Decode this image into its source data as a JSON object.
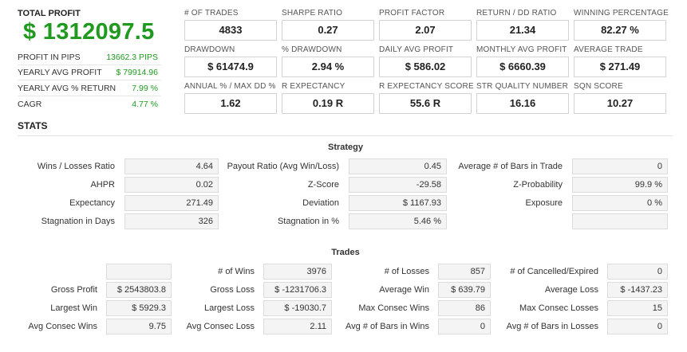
{
  "summary": {
    "total_profit_label": "TOTAL PROFIT",
    "total_profit_value": "$ 1312097.5",
    "rows": [
      {
        "label": "PROFIT IN PIPS",
        "value": "13662.3 PIPS"
      },
      {
        "label": "YEARLY AVG PROFIT",
        "value": "$ 79914.96"
      },
      {
        "label": "YEARLY AVG % RETURN",
        "value": "7.99 %"
      },
      {
        "label": "CAGR",
        "value": "4.77 %"
      }
    ]
  },
  "kpis": [
    {
      "label": "# OF TRADES",
      "value": "4833"
    },
    {
      "label": "SHARPE RATIO",
      "value": "0.27"
    },
    {
      "label": "PROFIT FACTOR",
      "value": "2.07"
    },
    {
      "label": "RETURN / DD RATIO",
      "value": "21.34"
    },
    {
      "label": "WINNING PERCENTAGE",
      "value": "82.27 %"
    },
    {
      "label": "DRAWDOWN",
      "value": "$ 61474.9"
    },
    {
      "label": "% DRAWDOWN",
      "value": "2.94 %"
    },
    {
      "label": "DAILY AVG PROFIT",
      "value": "$ 586.02"
    },
    {
      "label": "MONTHLY AVG PROFIT",
      "value": "$ 6660.39"
    },
    {
      "label": "AVERAGE TRADE",
      "value": "$ 271.49"
    },
    {
      "label": "ANNUAL % / MAX DD %",
      "value": "1.62"
    },
    {
      "label": "R EXPECTANCY",
      "value": "0.19 R"
    },
    {
      "label": "R EXPECTANCY SCORE",
      "value": "55.6 R"
    },
    {
      "label": "STR QUALITY NUMBER",
      "value": "16.16"
    },
    {
      "label": "SQN SCORE",
      "value": "10.27"
    }
  ],
  "stats_title": "STATS",
  "strategy": {
    "title": "Strategy",
    "rows": [
      [
        {
          "label": "Wins / Losses Ratio",
          "value": "4.64"
        },
        {
          "label": "Payout Ratio (Avg Win/Loss)",
          "value": "0.45"
        },
        {
          "label": "Average # of Bars in Trade",
          "value": "0"
        }
      ],
      [
        {
          "label": "AHPR",
          "value": "0.02"
        },
        {
          "label": "Z-Score",
          "value": "-29.58"
        },
        {
          "label": "Z-Probability",
          "value": "99.9 %"
        }
      ],
      [
        {
          "label": "Expectancy",
          "value": "271.49"
        },
        {
          "label": "Deviation",
          "value": "$ 1167.93"
        },
        {
          "label": "Exposure",
          "value": "0 %"
        }
      ],
      [
        {
          "label": "Stagnation in Days",
          "value": "326"
        },
        {
          "label": "Stagnation in %",
          "value": "5.46 %"
        },
        {
          "label": "",
          "value": ""
        }
      ]
    ]
  },
  "trades": {
    "title": "Trades",
    "rows": [
      [
        {
          "label": "",
          "value": ""
        },
        {
          "label": "# of Wins",
          "value": "3976"
        },
        {
          "label": "# of Losses",
          "value": "857"
        },
        {
          "label": "# of Cancelled/Expired",
          "value": "0"
        }
      ],
      [
        {
          "label": "Gross Profit",
          "value": "$ 2543803.8"
        },
        {
          "label": "Gross Loss",
          "value": "$ -1231706.3"
        },
        {
          "label": "Average Win",
          "value": "$ 639.79"
        },
        {
          "label": "Average Loss",
          "value": "$ -1437.23"
        }
      ],
      [
        {
          "label": "Largest Win",
          "value": "$ 5929.3"
        },
        {
          "label": "Largest Loss",
          "value": "$ -19030.7"
        },
        {
          "label": "Max Consec Wins",
          "value": "86"
        },
        {
          "label": "Max Consec Losses",
          "value": "15"
        }
      ],
      [
        {
          "label": "Avg Consec Wins",
          "value": "9.75"
        },
        {
          "label": "Avg Consec Loss",
          "value": "2.11"
        },
        {
          "label": "Avg # of Bars in Wins",
          "value": "0"
        },
        {
          "label": "Avg # of Bars in Losses",
          "value": "0"
        }
      ]
    ]
  }
}
